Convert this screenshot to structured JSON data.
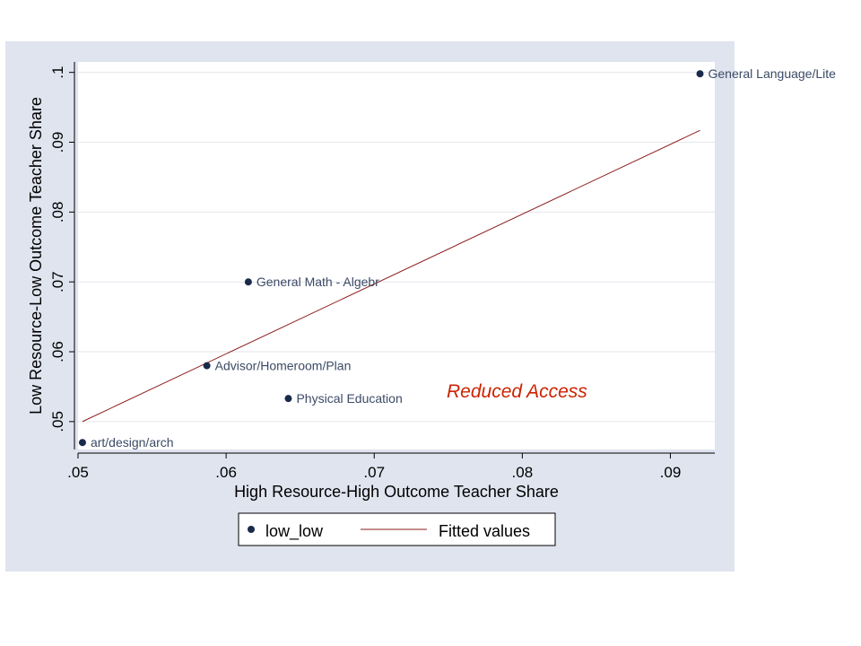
{
  "chart_data": {
    "type": "scatter",
    "xlabel": "High Resource-High Outcome Teacher Share",
    "ylabel": "Low Resource-Low Outcome Teacher Share",
    "xlim": [
      0.05,
      0.093
    ],
    "ylim": [
      0.046,
      0.1015
    ],
    "x_ticks": [
      ".05",
      ".06",
      ".07",
      ".08",
      ".09"
    ],
    "x_tick_values": [
      0.05,
      0.06,
      0.07,
      0.08,
      0.09
    ],
    "y_ticks": [
      ".05",
      ".06",
      ".07",
      ".08",
      ".09",
      ".1"
    ],
    "y_tick_values": [
      0.05,
      0.06,
      0.07,
      0.08,
      0.09,
      0.1
    ],
    "grid": "horizontal",
    "series": [
      {
        "name": "low_low",
        "type": "scatter",
        "color": "#1a2a4a",
        "points": [
          {
            "x": 0.0503,
            "y": 0.047,
            "label": "art/design/arch"
          },
          {
            "x": 0.0587,
            "y": 0.058,
            "label": "Advisor/Homeroom/Plan"
          },
          {
            "x": 0.0615,
            "y": 0.07,
            "label": "General Math - Algebr"
          },
          {
            "x": 0.0642,
            "y": 0.0533,
            "label": "Physical Education"
          },
          {
            "x": 0.092,
            "y": 0.0998,
            "label": "General Language/Lite"
          }
        ]
      },
      {
        "name": "Fitted values",
        "type": "line",
        "color": "#8b1a1a",
        "points": [
          {
            "x": 0.0503,
            "y": 0.05
          },
          {
            "x": 0.092,
            "y": 0.0917
          }
        ]
      }
    ],
    "annotation": "Reduced Access",
    "legend": {
      "position": "bottom",
      "entries": [
        "low_low",
        "Fitted values"
      ]
    }
  }
}
